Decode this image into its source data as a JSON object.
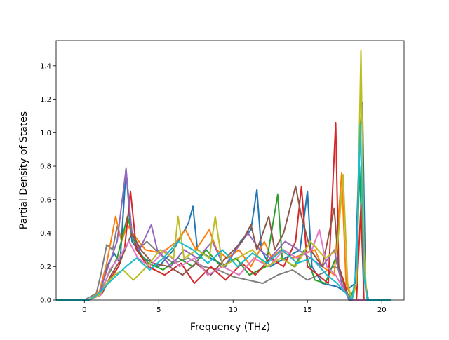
{
  "chart_data": {
    "type": "line",
    "title": "",
    "xlabel": "Frequency (THz)",
    "ylabel": "Partial Density of States",
    "xlim": [
      -1.9,
      21.5
    ],
    "ylim": [
      0,
      1.55
    ],
    "x_ticks": [
      0,
      5,
      10,
      15,
      20
    ],
    "y_ticks": [
      0.0,
      0.2,
      0.4,
      0.6,
      0.8,
      1.0,
      1.2,
      1.4
    ],
    "grid": false,
    "legend": "none",
    "colors": [
      "#1f77b4",
      "#ff7f0e",
      "#2ca02c",
      "#d62728",
      "#9467bd",
      "#8c564b",
      "#e377c2",
      "#7f7f7f",
      "#bcbd22",
      "#17becf"
    ],
    "series": [
      {
        "color": "#7f7f7f",
        "points": [
          [
            -1.9,
            0
          ],
          [
            0,
            0
          ],
          [
            0.8,
            0.04
          ],
          [
            1.1,
            0.15
          ],
          [
            1.5,
            0.33
          ],
          [
            1.9,
            0.3
          ],
          [
            2.2,
            0.44
          ],
          [
            2.5,
            0.36
          ],
          [
            2.8,
            0.79
          ],
          [
            3.1,
            0.42
          ],
          [
            3.6,
            0.3
          ],
          [
            4.2,
            0.35
          ],
          [
            5,
            0.28
          ],
          [
            6,
            0.22
          ],
          [
            7,
            0.25
          ],
          [
            8,
            0.2
          ],
          [
            9,
            0.18
          ],
          [
            10,
            0.14
          ],
          [
            11,
            0.12
          ],
          [
            12,
            0.1
          ],
          [
            13,
            0.15
          ],
          [
            14,
            0.18
          ],
          [
            15,
            0.12
          ],
          [
            16,
            0.16
          ],
          [
            16.8,
            0.2
          ],
          [
            17.2,
            0.18
          ],
          [
            17.6,
            0.05
          ],
          [
            18,
            0
          ],
          [
            20.6,
            0
          ]
        ]
      },
      {
        "color": "#1f77b4",
        "points": [
          [
            -1.9,
            0
          ],
          [
            0.3,
            0
          ],
          [
            1,
            0.04
          ],
          [
            1.5,
            0.2
          ],
          [
            2,
            0.28
          ],
          [
            2.4,
            0.22
          ],
          [
            2.8,
            0.78
          ],
          [
            3.2,
            0.35
          ],
          [
            4,
            0.25
          ],
          [
            5,
            0.2
          ],
          [
            6,
            0.3
          ],
          [
            7,
            0.46
          ],
          [
            7.3,
            0.56
          ],
          [
            7.6,
            0.3
          ],
          [
            8.5,
            0.25
          ],
          [
            9.5,
            0.2
          ],
          [
            10.5,
            0.35
          ],
          [
            11.2,
            0.42
          ],
          [
            11.6,
            0.66
          ],
          [
            11.9,
            0.3
          ],
          [
            12.5,
            0.2
          ],
          [
            13.5,
            0.25
          ],
          [
            14.5,
            0.3
          ],
          [
            15,
            0.65
          ],
          [
            15.3,
            0.2
          ],
          [
            16,
            0.1
          ],
          [
            17,
            0.08
          ],
          [
            17.5,
            0.05
          ],
          [
            18.2,
            0.1
          ],
          [
            18.5,
            0.95
          ],
          [
            18.7,
            1.18
          ],
          [
            18.9,
            0.1
          ],
          [
            19.1,
            0
          ],
          [
            20.6,
            0
          ]
        ]
      },
      {
        "color": "#ff7f0e",
        "points": [
          [
            -1.9,
            0
          ],
          [
            0.3,
            0
          ],
          [
            1,
            0.05
          ],
          [
            1.5,
            0.22
          ],
          [
            2.1,
            0.5
          ],
          [
            2.5,
            0.35
          ],
          [
            2.9,
            0.45
          ],
          [
            3.4,
            0.38
          ],
          [
            4.1,
            0.3
          ],
          [
            5.2,
            0.28
          ],
          [
            6.2,
            0.35
          ],
          [
            6.8,
            0.42
          ],
          [
            7.5,
            0.3
          ],
          [
            8.4,
            0.42
          ],
          [
            8.9,
            0.3
          ],
          [
            9.6,
            0.25
          ],
          [
            10.4,
            0.3
          ],
          [
            11.2,
            0.2
          ],
          [
            12.1,
            0.35
          ],
          [
            12.6,
            0.25
          ],
          [
            13.2,
            0.3
          ],
          [
            14,
            0.25
          ],
          [
            15.5,
            0.3
          ],
          [
            16,
            0.2
          ],
          [
            16.8,
            0.15
          ],
          [
            17.3,
            0.76
          ],
          [
            17.6,
            0.1
          ],
          [
            18,
            0
          ],
          [
            20.6,
            0
          ]
        ]
      },
      {
        "color": "#2ca02c",
        "points": [
          [
            -1.9,
            0
          ],
          [
            0.3,
            0
          ],
          [
            1,
            0.03
          ],
          [
            1.6,
            0.15
          ],
          [
            2.2,
            0.25
          ],
          [
            2.9,
            0.5
          ],
          [
            3.5,
            0.3
          ],
          [
            4.3,
            0.22
          ],
          [
            5.3,
            0.18
          ],
          [
            6.3,
            0.25
          ],
          [
            7.3,
            0.2
          ],
          [
            8.2,
            0.3
          ],
          [
            9.2,
            0.2
          ],
          [
            10.2,
            0.25
          ],
          [
            11.1,
            0.15
          ],
          [
            12.2,
            0.2
          ],
          [
            13,
            0.63
          ],
          [
            13.3,
            0.25
          ],
          [
            14.1,
            0.2
          ],
          [
            14.8,
            0.3
          ],
          [
            15.5,
            0.12
          ],
          [
            16.2,
            0.1
          ],
          [
            16.9,
            0.25
          ],
          [
            17.3,
            0.1
          ],
          [
            17.8,
            0
          ],
          [
            18.3,
            0.1
          ],
          [
            18.5,
            0.8
          ],
          [
            18.7,
            0.3
          ],
          [
            19,
            0
          ],
          [
            20.6,
            0
          ]
        ]
      },
      {
        "color": "#d62728",
        "points": [
          [
            -1.9,
            0
          ],
          [
            0.3,
            0
          ],
          [
            1.1,
            0.03
          ],
          [
            1.7,
            0.12
          ],
          [
            2.3,
            0.2
          ],
          [
            2.7,
            0.3
          ],
          [
            3.1,
            0.65
          ],
          [
            3.5,
            0.3
          ],
          [
            4.3,
            0.2
          ],
          [
            5.4,
            0.15
          ],
          [
            6.5,
            0.22
          ],
          [
            7.4,
            0.1
          ],
          [
            8.5,
            0.2
          ],
          [
            9.5,
            0.12
          ],
          [
            10.6,
            0.22
          ],
          [
            11.5,
            0.15
          ],
          [
            12.5,
            0.25
          ],
          [
            13.4,
            0.2
          ],
          [
            14.2,
            0.35
          ],
          [
            14.6,
            0.68
          ],
          [
            15,
            0.2
          ],
          [
            15.7,
            0.15
          ],
          [
            16.4,
            0.1
          ],
          [
            16.9,
            1.06
          ],
          [
            17.1,
            0.2
          ],
          [
            17.5,
            0.1
          ],
          [
            17.8,
            0
          ],
          [
            18.3,
            0
          ],
          [
            18.6,
            0.57
          ],
          [
            18.8,
            0
          ],
          [
            20.6,
            0
          ]
        ]
      },
      {
        "color": "#9467bd",
        "points": [
          [
            -1.9,
            0
          ],
          [
            0.3,
            0
          ],
          [
            1,
            0.04
          ],
          [
            1.6,
            0.2
          ],
          [
            2.2,
            0.35
          ],
          [
            2.8,
            0.78
          ],
          [
            3.2,
            0.4
          ],
          [
            3.7,
            0.3
          ],
          [
            4.5,
            0.45
          ],
          [
            4.9,
            0.3
          ],
          [
            5.8,
            0.2
          ],
          [
            6.7,
            0.3
          ],
          [
            7.6,
            0.25
          ],
          [
            8.6,
            0.35
          ],
          [
            9.4,
            0.2
          ],
          [
            10.2,
            0.3
          ],
          [
            11,
            0.4
          ],
          [
            11.8,
            0.3
          ],
          [
            12.5,
            0.25
          ],
          [
            13.5,
            0.35
          ],
          [
            14.4,
            0.3
          ],
          [
            15.2,
            0.25
          ],
          [
            16,
            0.2
          ],
          [
            16.8,
            0.3
          ],
          [
            17.3,
            0.1
          ],
          [
            17.8,
            0
          ],
          [
            20.6,
            0
          ]
        ]
      },
      {
        "color": "#8c564b",
        "points": [
          [
            -1.9,
            0
          ],
          [
            0.3,
            0
          ],
          [
            1.2,
            0.04
          ],
          [
            1.8,
            0.15
          ],
          [
            2.5,
            0.25
          ],
          [
            3.2,
            0.4
          ],
          [
            3.8,
            0.3
          ],
          [
            4.6,
            0.22
          ],
          [
            5.7,
            0.2
          ],
          [
            6.6,
            0.15
          ],
          [
            7.5,
            0.22
          ],
          [
            8.5,
            0.15
          ],
          [
            9.5,
            0.25
          ],
          [
            10.6,
            0.35
          ],
          [
            11.2,
            0.45
          ],
          [
            11.6,
            0.3
          ],
          [
            12.4,
            0.5
          ],
          [
            12.8,
            0.3
          ],
          [
            13.4,
            0.4
          ],
          [
            14.2,
            0.68
          ],
          [
            14.6,
            0.5
          ],
          [
            15.2,
            0.3
          ],
          [
            16,
            0.2
          ],
          [
            16.8,
            0.55
          ],
          [
            17.1,
            0.2
          ],
          [
            17.6,
            0.05
          ],
          [
            18,
            0
          ],
          [
            20.6,
            0
          ]
        ]
      },
      {
        "color": "#e377c2",
        "points": [
          [
            -1.9,
            0
          ],
          [
            0.3,
            0
          ],
          [
            1.1,
            0.03
          ],
          [
            1.7,
            0.18
          ],
          [
            2.3,
            0.25
          ],
          [
            3,
            0.35
          ],
          [
            3.6,
            0.25
          ],
          [
            4.4,
            0.2
          ],
          [
            5.4,
            0.3
          ],
          [
            6.4,
            0.2
          ],
          [
            7.4,
            0.25
          ],
          [
            8.3,
            0.15
          ],
          [
            9.3,
            0.2
          ],
          [
            10.4,
            0.15
          ],
          [
            11.4,
            0.25
          ],
          [
            12.4,
            0.2
          ],
          [
            13.4,
            0.3
          ],
          [
            14.3,
            0.25
          ],
          [
            15.3,
            0.3
          ],
          [
            15.8,
            0.42
          ],
          [
            16.3,
            0.2
          ],
          [
            16.9,
            0.15
          ],
          [
            17.5,
            0.05
          ],
          [
            18,
            0
          ],
          [
            20.6,
            0
          ]
        ]
      },
      {
        "color": "#bcbd22",
        "points": [
          [
            -1.9,
            0
          ],
          [
            0.3,
            0
          ],
          [
            1,
            0.03
          ],
          [
            1.5,
            0.1
          ],
          [
            2,
            0.15
          ],
          [
            2.6,
            0.18
          ],
          [
            3.3,
            0.12
          ],
          [
            4.2,
            0.2
          ],
          [
            5.1,
            0.3
          ],
          [
            6,
            0.25
          ],
          [
            6.3,
            0.5
          ],
          [
            6.7,
            0.25
          ],
          [
            7.6,
            0.3
          ],
          [
            8.4,
            0.25
          ],
          [
            8.8,
            0.5
          ],
          [
            9.3,
            0.2
          ],
          [
            10.3,
            0.25
          ],
          [
            11.3,
            0.3
          ],
          [
            12.3,
            0.2
          ],
          [
            13.2,
            0.25
          ],
          [
            14.2,
            0.2
          ],
          [
            15.2,
            0.35
          ],
          [
            16.2,
            0.25
          ],
          [
            17,
            0.3
          ],
          [
            17.4,
            0.75
          ],
          [
            17.7,
            0.1
          ],
          [
            18,
            0
          ],
          [
            18.3,
            0.1
          ],
          [
            18.6,
            1.49
          ],
          [
            18.8,
            0.3
          ],
          [
            19,
            0
          ],
          [
            20.6,
            0
          ]
        ]
      },
      {
        "color": "#17becf",
        "points": [
          [
            -1.9,
            0
          ],
          [
            0.3,
            0
          ],
          [
            1,
            0.04
          ],
          [
            1.6,
            0.1
          ],
          [
            2.2,
            0.15
          ],
          [
            2.8,
            0.2
          ],
          [
            3.5,
            0.25
          ],
          [
            4.4,
            0.18
          ],
          [
            5.3,
            0.25
          ],
          [
            6.3,
            0.35
          ],
          [
            7.3,
            0.3
          ],
          [
            8.3,
            0.22
          ],
          [
            9.3,
            0.3
          ],
          [
            10.3,
            0.2
          ],
          [
            11.3,
            0.28
          ],
          [
            12.3,
            0.22
          ],
          [
            13.3,
            0.3
          ],
          [
            14.3,
            0.22
          ],
          [
            15.3,
            0.25
          ],
          [
            16.3,
            0.15
          ],
          [
            17,
            0.1
          ],
          [
            17.5,
            0.05
          ],
          [
            18,
            0
          ],
          [
            18.3,
            0.2
          ],
          [
            18.55,
            1.05
          ],
          [
            18.8,
            0.15
          ],
          [
            19,
            0
          ],
          [
            20.6,
            0
          ]
        ]
      }
    ]
  }
}
